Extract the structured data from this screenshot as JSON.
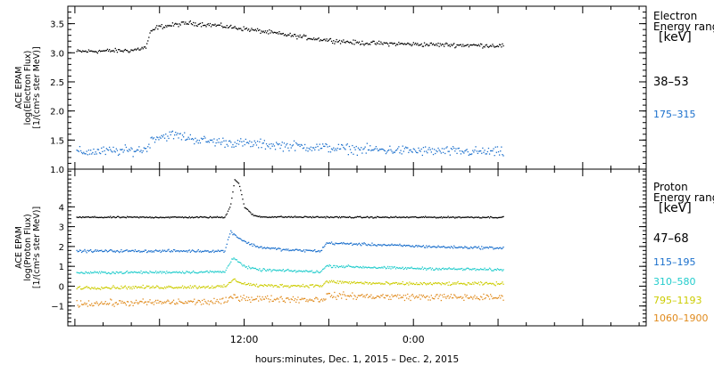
{
  "chart_data": [
    {
      "type": "scatter",
      "panel": "electron",
      "ylabel_lines": [
        "ACE EPAM",
        "log(Electron Flux)",
        "[1/(cm²s ster MeV)]"
      ],
      "ylim": [
        1.0,
        3.8
      ],
      "yticks": [
        {
          "v": 1.0,
          "label": "1.0"
        },
        {
          "v": 1.5,
          "label": "1.5"
        },
        {
          "v": 2.0,
          "label": "2.0"
        },
        {
          "v": 2.5,
          "label": "2.5"
        },
        {
          "v": 3.0,
          "label": "3.0"
        },
        {
          "v": 3.5,
          "label": "3.5"
        }
      ],
      "legend_title": [
        "Electron",
        "Energy range",
        "[keV]"
      ],
      "legend_placement": "right",
      "series": [
        {
          "name": "38–53",
          "color": "#000000",
          "profile": [
            [
              0.0,
              3.03
            ],
            [
              4.0,
              3.05
            ],
            [
              5.0,
              3.1
            ],
            [
              5.3,
              3.35
            ],
            [
              5.8,
              3.45
            ],
            [
              8.0,
              3.52
            ],
            [
              10.0,
              3.48
            ],
            [
              12.0,
              3.42
            ],
            [
              14.0,
              3.35
            ],
            [
              17.0,
              3.25
            ],
            [
              20.0,
              3.18
            ],
            [
              25.0,
              3.15
            ],
            [
              30.4,
              3.13
            ]
          ],
          "noise": 0.04
        },
        {
          "name": "175–315",
          "color": "#1a6fcc",
          "profile": [
            [
              0.0,
              1.3
            ],
            [
              4.0,
              1.33
            ],
            [
              5.0,
              1.35
            ],
            [
              5.5,
              1.55
            ],
            [
              7.0,
              1.6
            ],
            [
              9.0,
              1.5
            ],
            [
              12.0,
              1.45
            ],
            [
              16.0,
              1.4
            ],
            [
              20.0,
              1.35
            ],
            [
              25.0,
              1.32
            ],
            [
              30.4,
              1.3
            ]
          ],
          "noise": 0.09
        }
      ]
    },
    {
      "type": "scatter",
      "panel": "proton",
      "ylabel_lines": [
        "ACE EPAM",
        "log(Proton Flux)",
        "[1/(cm²s ster MeV)]"
      ],
      "ylim": [
        -2.0,
        5.9
      ],
      "yticks": [
        {
          "v": -1,
          "label": "−1"
        },
        {
          "v": 0,
          "label": "0"
        },
        {
          "v": 1,
          "label": "1"
        },
        {
          "v": 2,
          "label": "2"
        },
        {
          "v": 3,
          "label": "3"
        },
        {
          "v": 4,
          "label": "4"
        }
      ],
      "legend_title": [
        "Proton",
        "Energy range",
        "[keV]"
      ],
      "legend_placement": "right",
      "series": [
        {
          "name": "47–68",
          "color": "#000000",
          "profile": [
            [
              0.0,
              3.5
            ],
            [
              10.6,
              3.5
            ],
            [
              11.0,
              4.1
            ],
            [
              11.3,
              5.4
            ],
            [
              11.6,
              5.2
            ],
            [
              12.0,
              4.0
            ],
            [
              12.6,
              3.6
            ],
            [
              13.2,
              3.52
            ],
            [
              20.0,
              3.5
            ],
            [
              30.4,
              3.5
            ]
          ],
          "noise": 0.04
        },
        {
          "name": "115–195",
          "color": "#1a6fcc",
          "profile": [
            [
              0.0,
              1.8
            ],
            [
              10.6,
              1.8
            ],
            [
              11.0,
              2.8
            ],
            [
              11.5,
              2.5
            ],
            [
              12.2,
              2.2
            ],
            [
              13.0,
              2.0
            ],
            [
              15.0,
              1.85
            ],
            [
              17.4,
              1.8
            ],
            [
              17.8,
              2.2
            ],
            [
              22.0,
              2.1
            ],
            [
              26.0,
              2.0
            ],
            [
              30.4,
              1.95
            ]
          ],
          "noise": 0.07
        },
        {
          "name": "310–580",
          "color": "#22cccc",
          "profile": [
            [
              0.0,
              0.7
            ],
            [
              10.6,
              0.75
            ],
            [
              11.2,
              1.5
            ],
            [
              12.0,
              1.0
            ],
            [
              13.0,
              0.85
            ],
            [
              17.4,
              0.75
            ],
            [
              17.8,
              1.05
            ],
            [
              22.0,
              0.95
            ],
            [
              30.4,
              0.85
            ]
          ],
          "noise": 0.07
        },
        {
          "name": "795–1193",
          "color": "#cccc00",
          "profile": [
            [
              0.0,
              -0.05
            ],
            [
              10.6,
              0.0
            ],
            [
              11.2,
              0.35
            ],
            [
              12.0,
              0.15
            ],
            [
              13.0,
              0.05
            ],
            [
              17.5,
              0.05
            ],
            [
              17.8,
              0.25
            ],
            [
              22.0,
              0.15
            ],
            [
              30.4,
              0.15
            ]
          ],
          "noise": 0.09
        },
        {
          "name": "1060–1900",
          "color": "#e08a1c",
          "profile": [
            [
              0.0,
              -0.85
            ],
            [
              10.6,
              -0.75
            ],
            [
              11.2,
              -0.5
            ],
            [
              12.5,
              -0.6
            ],
            [
              17.5,
              -0.65
            ],
            [
              17.8,
              -0.45
            ],
            [
              22.0,
              -0.5
            ],
            [
              30.4,
              -0.55
            ]
          ],
          "noise": 0.18
        }
      ]
    }
  ],
  "x_axis": {
    "xlim": [
      -0.5,
      40.5
    ],
    "ticks": [
      {
        "v": 12,
        "label": "12:00"
      },
      {
        "v": 24,
        "label": "0:00"
      }
    ],
    "minor_step": 2,
    "data_end": 30.4,
    "xlabel": "hours:minutes, Dec.  1, 2015 – Dec.  2, 2015"
  }
}
